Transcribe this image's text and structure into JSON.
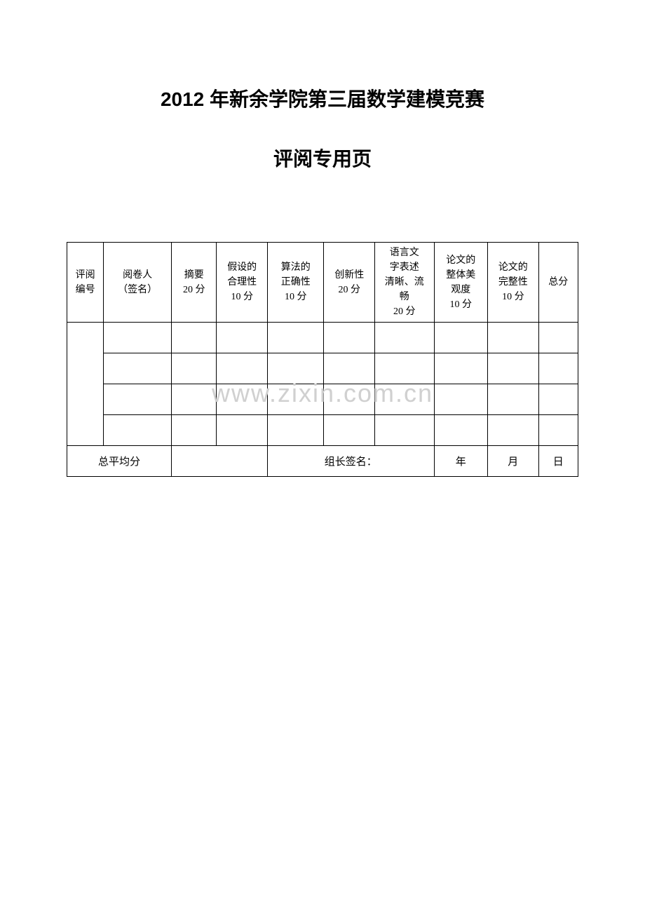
{
  "title_main": "2012 年新余学院第三届数学建模竞赛",
  "title_sub": "评阅专用页",
  "watermark_text": "www.zixin.com.cn",
  "table": {
    "headers": [
      "评阅\n编号",
      "阅卷人\n（签名）",
      "摘要\n20 分",
      "假设的\n合理性\n10 分",
      "算法的\n正确性\n10 分",
      "创新性\n20 分",
      "语言文\n字表述\n清晰、流\n畅\n20 分",
      "论文的\n整体美\n观度\n10 分",
      "论文的\n完整性\n10 分",
      "总分"
    ],
    "footer": {
      "avg_label": "总平均分",
      "sign_label": "组长签名：",
      "year_label": "年",
      "month_label": "月",
      "day_label": "日"
    }
  }
}
